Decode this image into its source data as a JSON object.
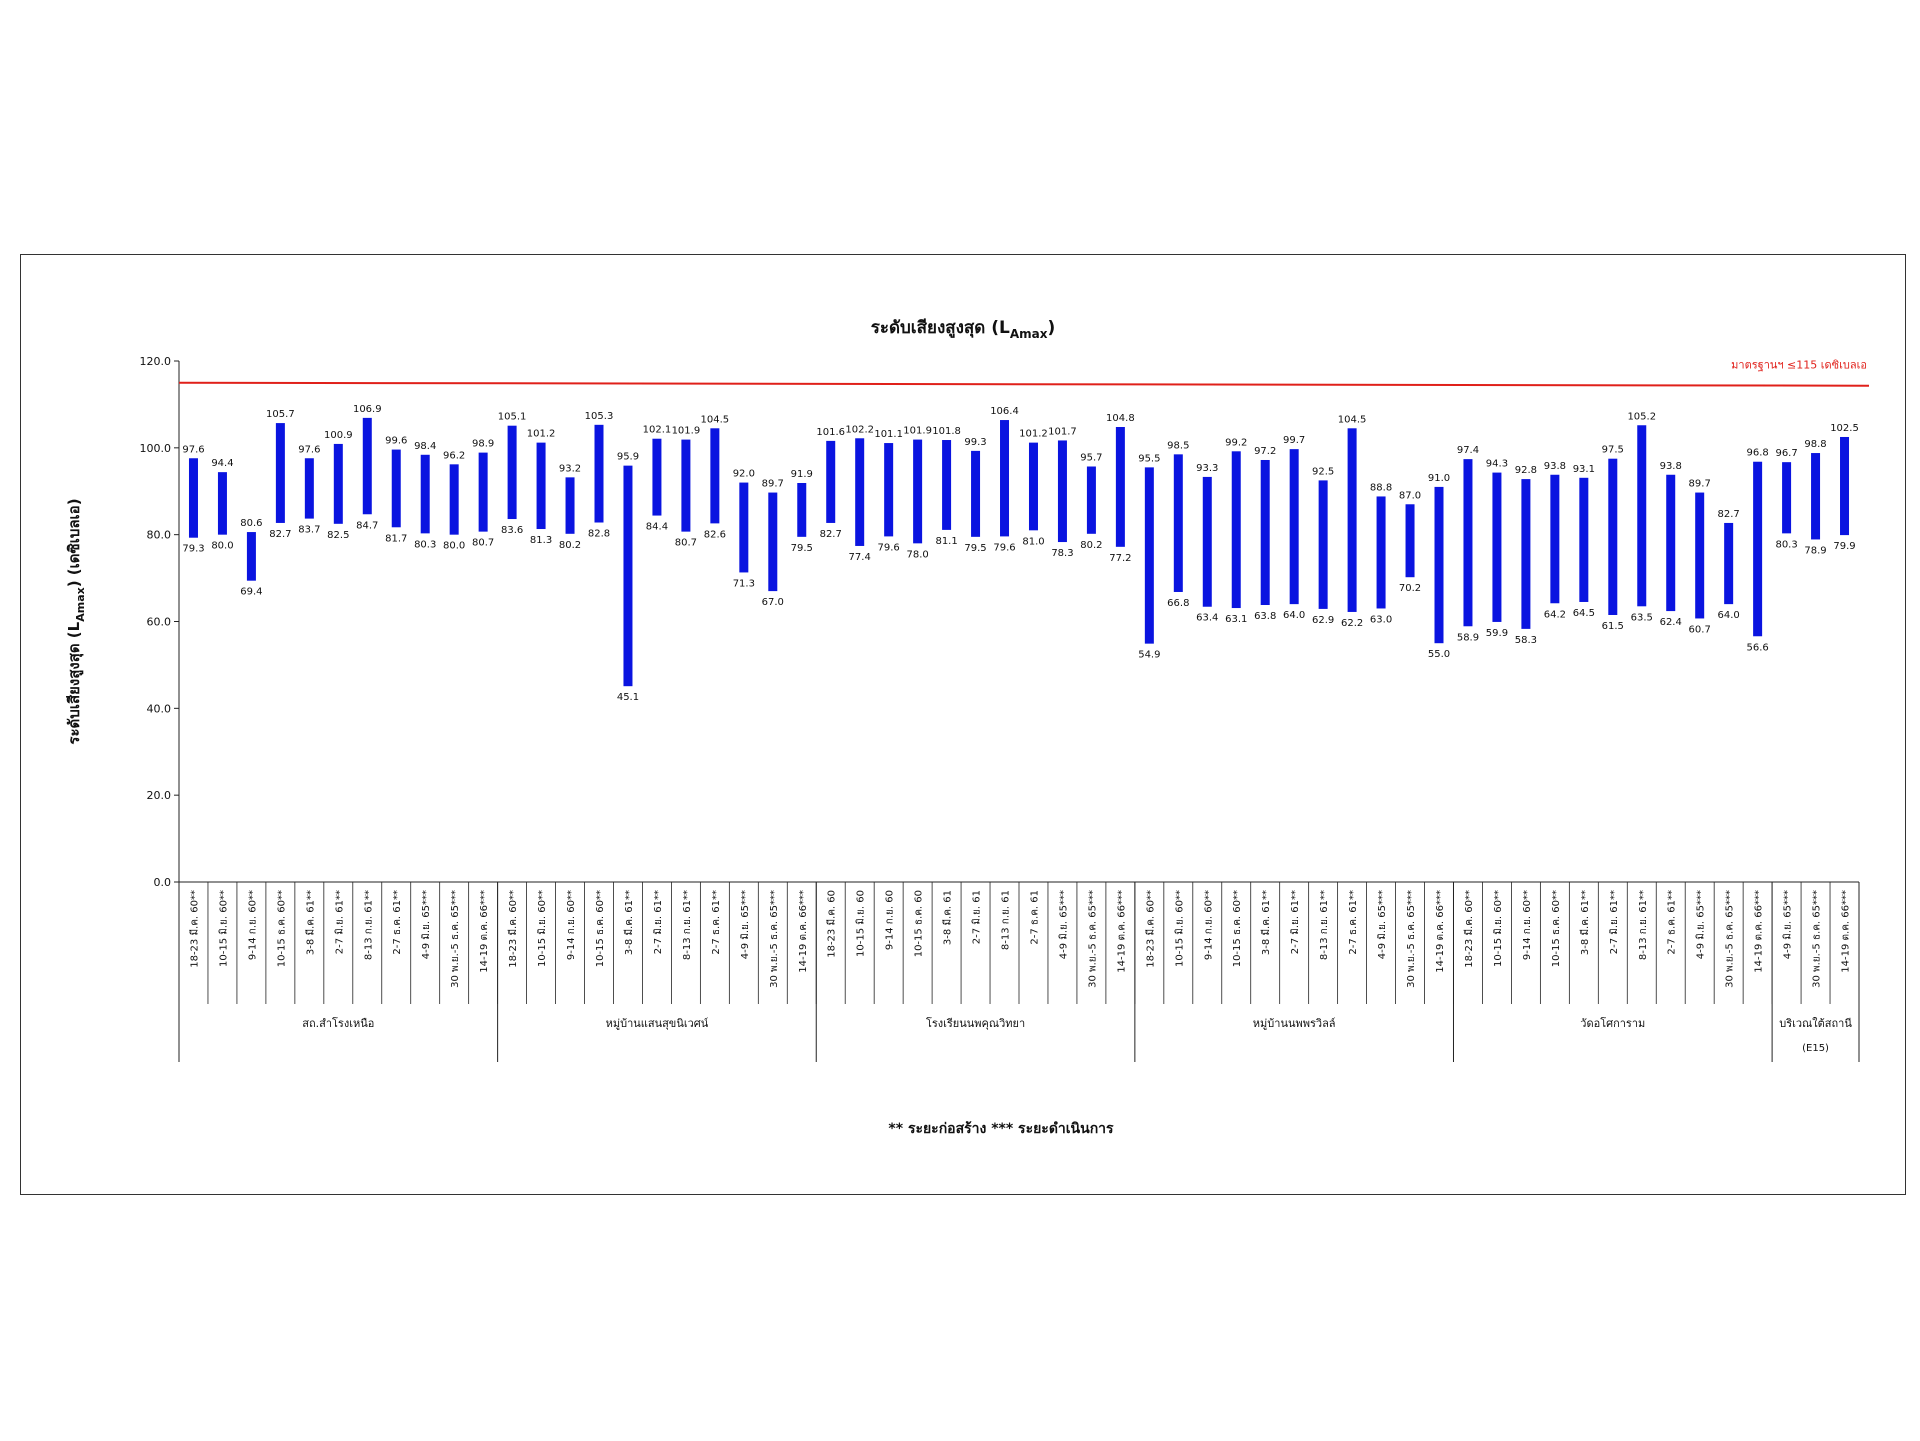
{
  "chart_data": {
    "type": "bar",
    "title": "ระดับเสียงสูงสุด (L",
    "title_sub": "Amax",
    "title_end": ")",
    "ylabel": "ระดับเสียงสูงสุด (L",
    "ylabel_sub": "Amax",
    "ylabel_end": ") (เดซิเบลเอ)",
    "ylim": [
      0,
      120
    ],
    "y_ticks": [
      "0.0",
      "20.0",
      "40.0",
      "60.0",
      "80.0",
      "100.0",
      "120.0"
    ],
    "grid": false,
    "bar_color": "#0a14e0",
    "standard_line": {
      "value": 115,
      "label": "มาตรฐานฯ ≤115 เดซิเบลเอ",
      "color": "#e0201a"
    },
    "note": "** ระยะก่อสร้าง    *** ระยะดำเนินการ",
    "categories": [
      "18-23 มี.ค. 60**",
      "10-15 มิ.ย. 60**",
      "9-14 ก.ย. 60**",
      "10-15 ธ.ค. 60**",
      "3-8 มี.ค. 61**",
      "2-7 มิ.ย. 61**",
      "8-13 ก.ย. 61**",
      "2-7 ธ.ค. 61**",
      "4-9 มิ.ย. 65***",
      "30 พ.ย.-5 ธ.ค. 65***",
      "14-19 ต.ค. 66***",
      "18-23 มี.ค. 60**",
      "10-15 มิ.ย. 60**",
      "9-14 ก.ย. 60**",
      "10-15 ธ.ค. 60**",
      "3-8 มี.ค. 61**",
      "2-7 มิ.ย. 61**",
      "8-13 ก.ย. 61**",
      "2-7 ธ.ค. 61**",
      "4-9 มิ.ย. 65***",
      "30 พ.ย.-5 ธ.ค. 65***",
      "14-19 ต.ค. 66***",
      "18-23 มี.ค. 60",
      "10-15 มิ.ย. 60",
      "9-14 ก.ย. 60",
      "10-15 ธ.ค. 60",
      "3-8 มี.ค. 61",
      "2-7 มิ.ย. 61",
      "8-13 ก.ย. 61",
      "2-7 ธ.ค. 61",
      "4-9 มิ.ย. 65***",
      "30 พ.ย.-5 ธ.ค. 65***",
      "14-19 ต.ค. 66***",
      "18-23 มี.ค. 60**",
      "10-15 มิ.ย. 60**",
      "9-14 ก.ย. 60**",
      "10-15 ธ.ค. 60**",
      "3-8 มี.ค. 61**",
      "2-7 มิ.ย. 61**",
      "8-13 ก.ย. 61**",
      "2-7 ธ.ค. 61**",
      "4-9 มิ.ย. 65***",
      "30 พ.ย.-5 ธ.ค. 65***",
      "14-19 ต.ค. 66***",
      "18-23 มี.ค. 60**",
      "10-15 มิ.ย. 60**",
      "9-14 ก.ย. 60**",
      "10-15 ธ.ค. 60**",
      "3-8 มี.ค. 61**",
      "2-7 มิ.ย. 61**",
      "8-13 ก.ย. 61**",
      "2-7 ธ.ค. 61**",
      "4-9 มิ.ย. 65***",
      "30 พ.ย.-5 ธ.ค. 65***",
      "14-19 ต.ค. 66***",
      "4-9 มิ.ย. 65***",
      "30 พ.ย.-5 ธ.ค. 65***",
      "14-19 ต.ค. 66***"
    ],
    "max": [
      97.6,
      94.4,
      80.6,
      105.7,
      97.6,
      100.9,
      106.9,
      99.6,
      98.4,
      96.2,
      98.9,
      105.1,
      101.2,
      93.2,
      105.3,
      95.9,
      102.1,
      101.9,
      104.5,
      92.0,
      89.7,
      91.9,
      101.6,
      102.2,
      101.1,
      101.9,
      101.8,
      99.3,
      106.4,
      101.2,
      101.7,
      95.7,
      104.8,
      95.5,
      98.5,
      93.3,
      99.2,
      97.2,
      99.7,
      92.5,
      104.5,
      88.8,
      87.0,
      91.0,
      97.4,
      94.3,
      92.8,
      93.8,
      93.1,
      97.5,
      105.2,
      93.8,
      89.7,
      82.7,
      96.8,
      96.7,
      98.8,
      102.5
    ],
    "max_labels": [
      "97.6",
      "94.4",
      "80.6",
      "105.7",
      "97.6",
      "100.9",
      "106.9",
      "99.6",
      "98.4",
      "96.2",
      "98.9",
      "105.1",
      "101.2",
      "93.2",
      "105.3",
      "95.9",
      "102.1",
      "101.9",
      "104.5",
      "92.0",
      "89.7",
      "91.9",
      "101.6",
      "102.2",
      "101.1",
      "101.9",
      "101.8",
      "99.3",
      "106.4",
      "101.2",
      "101.7",
      "95.7",
      "104.8",
      "95.5",
      "98.5",
      "93.3",
      "99.2",
      "97.2",
      "99.7",
      "92.5",
      "104.5",
      "88.8",
      "87.0",
      "91.0",
      "97.4",
      "94.3",
      "92.8",
      "93.8",
      "93.1",
      "97.5",
      "105.2",
      "93.8",
      "89.7",
      "82.7",
      "96.8",
      "96.7",
      "98.8",
      "102.5"
    ],
    "min": [
      79.3,
      80.0,
      69.4,
      82.7,
      83.7,
      82.5,
      84.7,
      81.7,
      80.3,
      80.0,
      80.7,
      83.6,
      81.3,
      80.2,
      82.8,
      45.1,
      84.4,
      80.7,
      82.6,
      71.3,
      67.0,
      79.5,
      82.7,
      77.4,
      79.6,
      78.0,
      81.1,
      79.5,
      79.6,
      81.0,
      78.3,
      80.2,
      77.2,
      54.9,
      66.8,
      63.4,
      63.1,
      63.8,
      64.0,
      62.9,
      62.2,
      63.0,
      70.2,
      55.0,
      58.9,
      59.9,
      58.3,
      64.2,
      64.5,
      61.5,
      63.5,
      62.4,
      60.7,
      64.0,
      56.6,
      80.3,
      78.9,
      79.9
    ],
    "min_labels": [
      "79.3",
      "80.0",
      "69.4",
      "82.7",
      "83.7",
      "82.5",
      "84.7",
      "81.7",
      "80.3",
      "80.0",
      "80.7",
      "83.6",
      "81.3",
      "80.2",
      "82.8",
      "45.1",
      "84.4",
      "80.7",
      "82.6",
      "71.3",
      "67.0",
      "79.5",
      "82.7",
      "77.4",
      "79.6",
      "78.0",
      "81.1",
      "79.5",
      "79.6",
      "81.0",
      "78.3",
      "80.2",
      "77.2",
      "54.9",
      "66.8",
      "63.4",
      "63.1",
      "63.8",
      "64.0",
      "62.9",
      "62.2",
      "63.0",
      "70.2",
      "55.0",
      "58.9",
      "59.9",
      "58.3",
      "64.2",
      "64.5",
      "61.5",
      "63.5",
      "62.4",
      "60.7",
      "64.0",
      "56.6",
      "80.3",
      "78.9",
      "79.9"
    ],
    "groups": [
      {
        "name": "สถ.สำโรงเหนือ",
        "sub": "",
        "count": 11
      },
      {
        "name": "หมู่บ้านแสนสุขนิเวศน์",
        "sub": "",
        "count": 11
      },
      {
        "name": "โรงเรียนนพคุณวิทยา",
        "sub": "",
        "count": 11
      },
      {
        "name": "หมู่บ้านนพพรวิลล์",
        "sub": "",
        "count": 11
      },
      {
        "name": "วัดอโศการาม",
        "sub": "",
        "count": 11
      },
      {
        "name": "บริเวณใต้สถานี",
        "sub": "(E15)",
        "count": 3
      }
    ]
  }
}
